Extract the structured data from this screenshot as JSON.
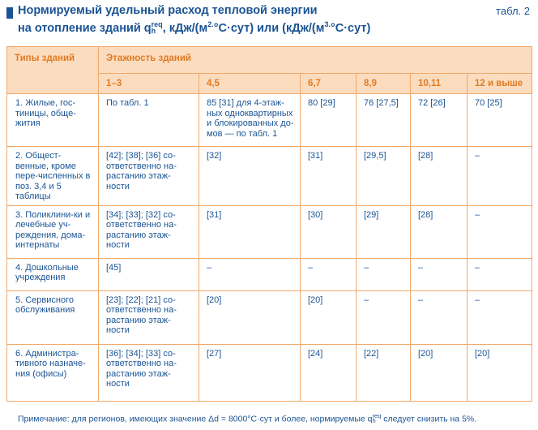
{
  "title": {
    "line1": "Нормируемый удельный расход тепловой энергии",
    "line2_prefix": "на отопление зданий q",
    "line2_sup": "req",
    "line2_sub": "h",
    "line2_mid": ", кДж/(м",
    "line2_sup2": "2.",
    "line2_mid2": "°С·сут) или (кДж/(м",
    "line2_sup3": "3.",
    "line2_suffix": "°С·сут)"
  },
  "table_number": "табл. 2",
  "header": {
    "col_type": "Типы зданий",
    "col_floors": "Этажность зданий",
    "floors": [
      "1–3",
      "4,5",
      "6,7",
      "8,9",
      "10,11",
      "12 и выше"
    ]
  },
  "rows": [
    {
      "type": "1. Жилые, гос-тиницы, обще-жития",
      "cells": [
        "По табл. 1",
        "85 [31] для 4-этаж-ных одноквартирных и блокированных до-мов — по табл. 1",
        "80 [29]",
        "76 [27,5]",
        "72 [26]",
        "70 [25]"
      ]
    },
    {
      "type": "2. Общест-венные, кроме пере-численных в поз. 3,4 и 5 таблицы",
      "cells": [
        "[42]; [38]; [36] со-ответственно на-растанию этаж-ности",
        "[32]",
        "[31]",
        "[29,5]",
        "[28]",
        "–"
      ]
    },
    {
      "type": "3. Поликлини-ки и лечебные уч-реждения, дома-интернаты",
      "cells": [
        "[34]; [33]; [32] со-ответственно на-растанию этаж-ности",
        "[31]",
        "[30]",
        "[29]",
        "[28]",
        "–"
      ]
    },
    {
      "type": "4. Дошкольные учреждения",
      "cells": [
        "[45]",
        "–",
        "–",
        "–",
        "–",
        "–"
      ]
    },
    {
      "type": "5. Сервисного обслуживания",
      "cells": [
        "[23]; [22]; [21] со-ответственно на-растанию этаж-ности",
        "[20]",
        "[20]",
        "–",
        "–",
        "–"
      ]
    },
    {
      "type": "6. Администра-тивного назначе-ния (офисы)",
      "cells": [
        "[36]; [34]; [33] со-ответственно на-растанию этаж-ности",
        "[27]",
        "[24]",
        "[22]",
        "[20]",
        "[20]"
      ]
    }
  ],
  "note": {
    "prefix": "Примечание: для регионов, имеющих значение Δd = 8000°С·сут и более, нормируемые q",
    "sup": "req",
    "sub": "h",
    "suffix": " следует снизить на 5%."
  },
  "colors": {
    "text": "#1b5494",
    "header_bg": "#fcdcbf",
    "header_text": "#e07a22",
    "border": "#f2a86a"
  }
}
